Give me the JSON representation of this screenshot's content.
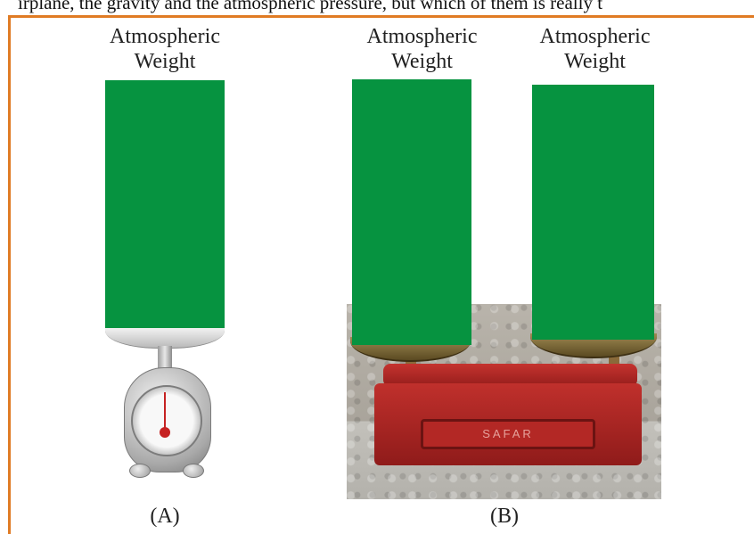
{
  "top_text": "irplane, the gravity and the atmospheric pressure, but which of them is really t",
  "panel_a": {
    "label": [
      "Atmospheric",
      "Weight"
    ],
    "caption": "(A)"
  },
  "panel_b": {
    "left_label": [
      "Atmospheric",
      "Weight"
    ],
    "right_label": [
      "Atmospheric",
      "Weight"
    ],
    "caption": "(B)",
    "scale_plate_text": "SAFAR"
  },
  "colors": {
    "column": "#069340",
    "frame": "#e07b24"
  }
}
